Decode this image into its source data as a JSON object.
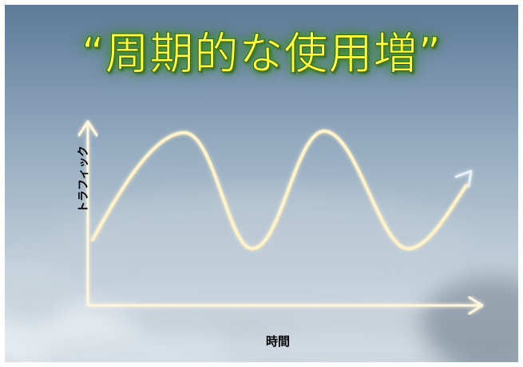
{
  "slide": {
    "title": "“周期的な使用増”"
  },
  "diagram": {
    "y_axis_label": "トラフィック",
    "x_axis_label": "時間"
  },
  "colors": {
    "title_text": "#ffff33",
    "title_glow": "#3b8f2f",
    "axis": "#fff6dc",
    "curve": "#fff2c8",
    "curve_glow": "#f0c96a"
  }
}
